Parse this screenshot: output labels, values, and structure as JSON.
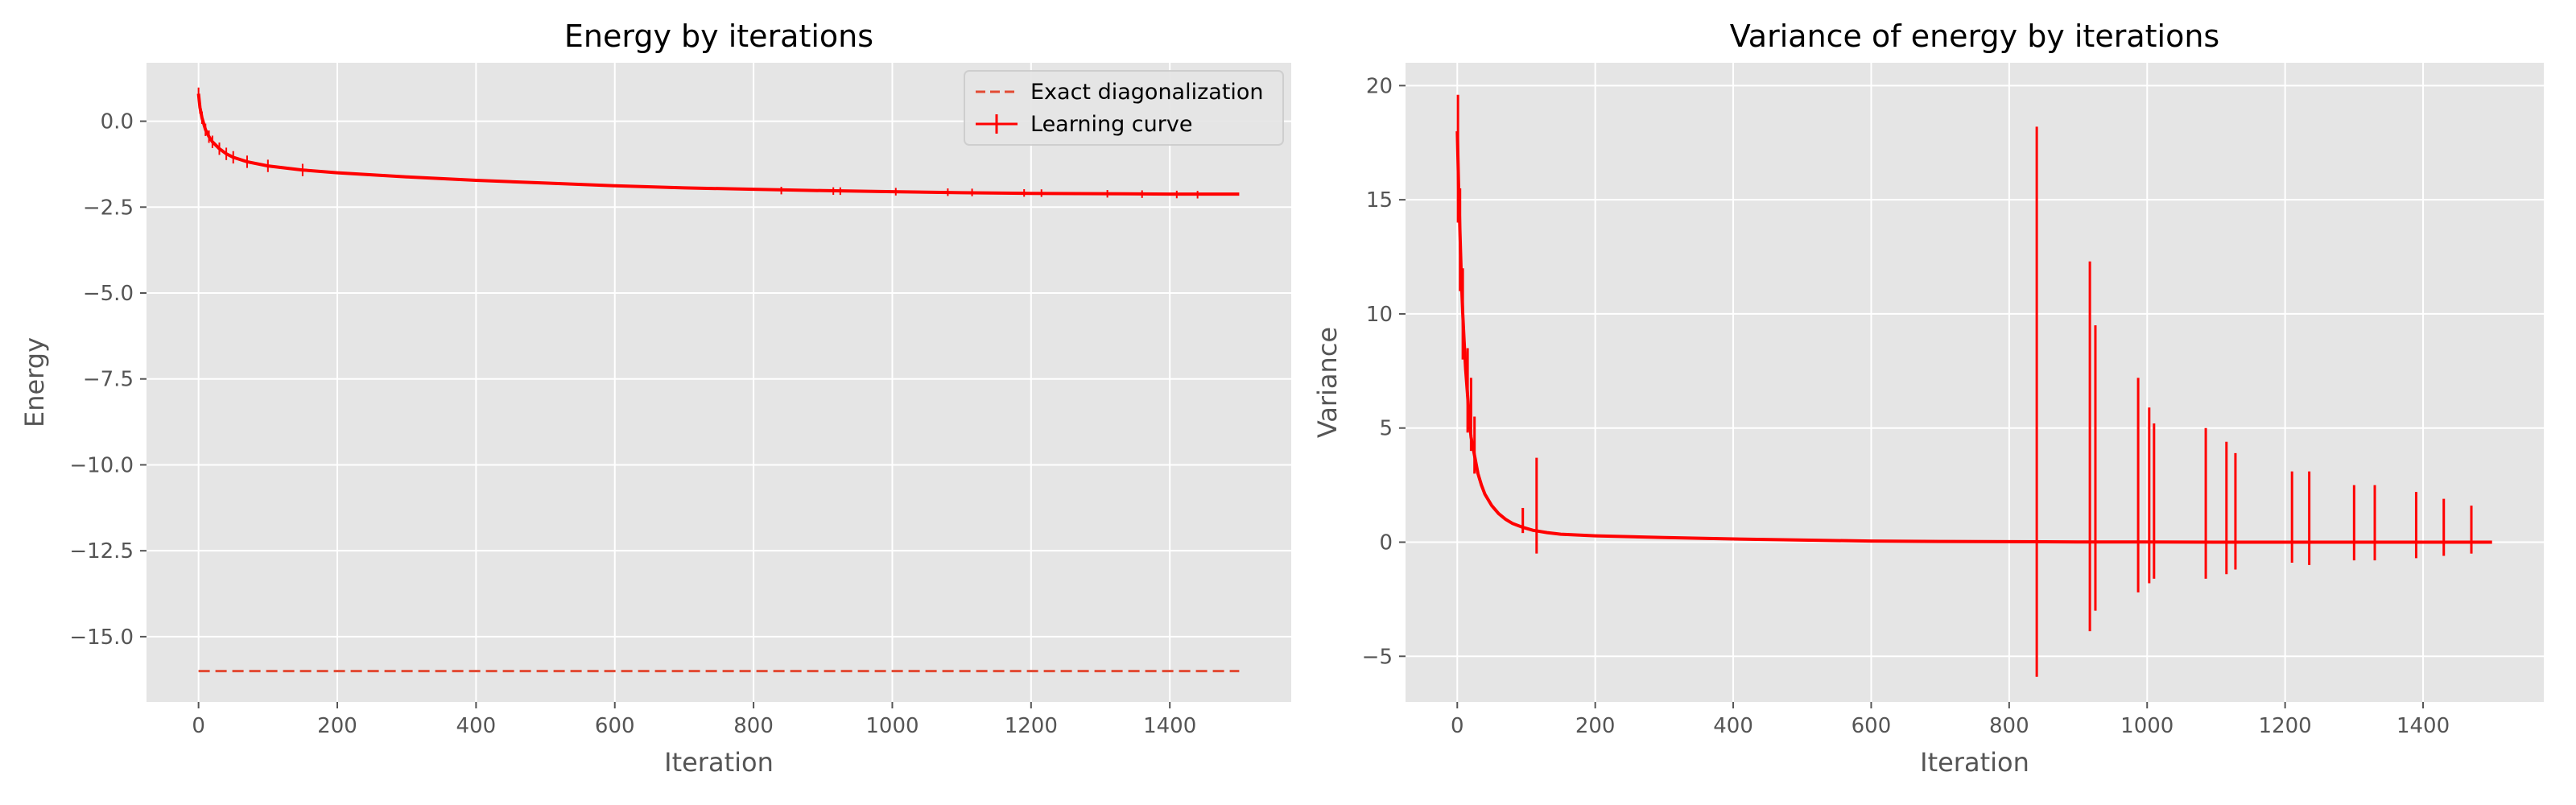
{
  "chart_data": [
    {
      "type": "line",
      "title": "Energy by iterations",
      "xlabel": "Iteration",
      "ylabel": "Energy",
      "xlim": [
        -75,
        1575
      ],
      "ylim": [
        -16.9,
        1.7
      ],
      "xticks": [
        0,
        200,
        400,
        600,
        800,
        1000,
        1200,
        1400
      ],
      "xtick_labels": [
        "0",
        "200",
        "400",
        "600",
        "800",
        "1000",
        "1200",
        "1400"
      ],
      "yticks": [
        0.0,
        -2.5,
        -5.0,
        -7.5,
        -10.0,
        -12.5,
        -15.0
      ],
      "ytick_labels": [
        "0.0",
        "−2.5",
        "−5.0",
        "−7.5",
        "−10.0",
        "−12.5",
        "−15.0"
      ],
      "grid": true,
      "legend": "top-right",
      "series": [
        {
          "name": "Exact diagonalization",
          "style": "dashed",
          "color": "#e24a33",
          "x": [
            0,
            1500
          ],
          "y": [
            -16.0,
            -16.0
          ]
        },
        {
          "name": "Learning curve",
          "style": "solid-errorbar",
          "color": "#ff0000",
          "x": [
            0,
            2,
            5,
            10,
            15,
            20,
            30,
            40,
            50,
            70,
            100,
            150,
            200,
            300,
            400,
            500,
            600,
            700,
            800,
            900,
            1000,
            1100,
            1200,
            1300,
            1400,
            1500
          ],
          "y": [
            0.8,
            0.4,
            0.1,
            -0.25,
            -0.45,
            -0.6,
            -0.8,
            -0.95,
            -1.05,
            -1.18,
            -1.3,
            -1.42,
            -1.5,
            -1.62,
            -1.72,
            -1.8,
            -1.88,
            -1.94,
            -1.98,
            -2.02,
            -2.05,
            -2.08,
            -2.1,
            -2.11,
            -2.12,
            -2.12
          ]
        }
      ]
    },
    {
      "type": "line",
      "title": "Variance of energy by iterations",
      "xlabel": "Iteration",
      "ylabel": "Variance",
      "xlim": [
        -75,
        1575
      ],
      "ylim": [
        -7,
        21
      ],
      "xticks": [
        0,
        200,
        400,
        600,
        800,
        1000,
        1200,
        1400
      ],
      "xtick_labels": [
        "0",
        "200",
        "400",
        "600",
        "800",
        "1000",
        "1200",
        "1400"
      ],
      "yticks": [
        20,
        15,
        10,
        5,
        0,
        -5
      ],
      "ytick_labels": [
        "20",
        "15",
        "10",
        "5",
        "0",
        "−5"
      ],
      "grid": true,
      "series": [
        {
          "name": "",
          "style": "solid",
          "color": "#ff0000",
          "x": [
            0,
            2,
            4,
            6,
            8,
            10,
            12,
            14,
            16,
            18,
            20,
            25,
            30,
            35,
            40,
            50,
            60,
            70,
            80,
            95,
            110,
            130,
            150,
            200,
            300,
            400,
            500,
            600,
            700,
            800,
            900,
            1000,
            1100,
            1200,
            1300,
            1400,
            1500
          ],
          "y": [
            18.0,
            15.5,
            13.5,
            11.5,
            10.0,
            8.8,
            7.6,
            6.8,
            6.0,
            5.2,
            4.6,
            3.8,
            3.0,
            2.5,
            2.1,
            1.6,
            1.25,
            1.0,
            0.82,
            0.65,
            0.52,
            0.42,
            0.35,
            0.28,
            0.2,
            0.14,
            0.09,
            0.05,
            0.03,
            0.02,
            0.01,
            0.01,
            0.0,
            0.0,
            0.0,
            0.0,
            0.0
          ]
        }
      ],
      "spikes": [
        {
          "x": 1,
          "high": 19.6,
          "low": 14.0
        },
        {
          "x": 4,
          "high": 15.5,
          "low": 11.0
        },
        {
          "x": 8,
          "high": 12.0,
          "low": 8.0
        },
        {
          "x": 15,
          "high": 8.5,
          "low": 4.8
        },
        {
          "x": 20,
          "high": 7.2,
          "low": 4.0
        },
        {
          "x": 25,
          "high": 5.5,
          "low": 3.0
        },
        {
          "x": 95,
          "high": 1.5,
          "low": 0.4
        },
        {
          "x": 115,
          "high": 3.7,
          "low": -0.5
        },
        {
          "x": 840,
          "high": 18.2,
          "low": -5.9
        },
        {
          "x": 917,
          "high": 12.3,
          "low": -3.9
        },
        {
          "x": 925,
          "high": 9.5,
          "low": -3.0
        },
        {
          "x": 987,
          "high": 7.2,
          "low": -2.2
        },
        {
          "x": 1003,
          "high": 5.9,
          "low": -1.8
        },
        {
          "x": 1010,
          "high": 5.2,
          "low": -1.6
        },
        {
          "x": 1085,
          "high": 5.0,
          "low": -1.6
        },
        {
          "x": 1115,
          "high": 4.4,
          "low": -1.4
        },
        {
          "x": 1128,
          "high": 3.9,
          "low": -1.2
        },
        {
          "x": 1210,
          "high": 3.1,
          "low": -0.9
        },
        {
          "x": 1235,
          "high": 3.1,
          "low": -1.0
        },
        {
          "x": 1300,
          "high": 2.5,
          "low": -0.8
        },
        {
          "x": 1330,
          "high": 2.5,
          "low": -0.8
        },
        {
          "x": 1390,
          "high": 2.2,
          "low": -0.7
        },
        {
          "x": 1430,
          "high": 1.9,
          "low": -0.6
        },
        {
          "x": 1470,
          "high": 1.6,
          "low": -0.5
        }
      ]
    }
  ]
}
